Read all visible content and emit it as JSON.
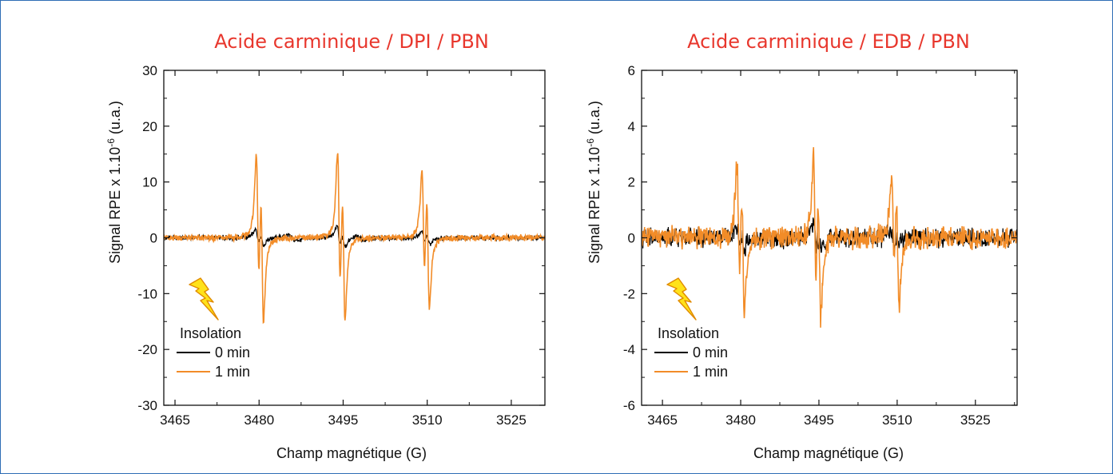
{
  "chart_data": [
    {
      "type": "line",
      "title": "Acide carminique / DPI / PBN",
      "xlabel": "Champ magnétique (G)",
      "ylabel": "Signal RPE x 1.10",
      "ylabel_exponent": "-6",
      "ylabel_unit": " (u.a.)",
      "xlim": [
        3463,
        3531
      ],
      "ylim": [
        -30,
        30
      ],
      "xticks": [
        3465,
        3480,
        3495,
        3510,
        3525
      ],
      "yticks": [
        -30,
        -20,
        -10,
        0,
        10,
        20,
        30
      ],
      "legend": {
        "title": "Insolation",
        "position": "bottom-left"
      },
      "noise": {
        "series0": 0.35,
        "series1": 0.45
      },
      "series": [
        {
          "name": "0 min",
          "color": "#000000",
          "lines": [
            {
              "center": 3479.7,
              "amp": 2.4,
              "width": 0.32
            },
            {
              "center": 3480.6,
              "amp": 2.0,
              "width": 0.32
            },
            {
              "center": 3486.0,
              "amp": 1.0,
              "width": 0.6
            },
            {
              "center": 3494.2,
              "amp": 3.4,
              "width": 0.32
            },
            {
              "center": 3495.1,
              "amp": 2.4,
              "width": 0.32
            },
            {
              "center": 3498.0,
              "amp": 0.8,
              "width": 0.6
            },
            {
              "center": 3509.3,
              "amp": 1.8,
              "width": 0.32
            },
            {
              "center": 3510.2,
              "amp": 1.6,
              "width": 0.32
            }
          ]
        },
        {
          "name": "1 min",
          "color": "#f28c28",
          "lines": [
            {
              "center": 3479.75,
              "amp": 22.5,
              "width": 0.26
            },
            {
              "center": 3480.55,
              "amp": 22.5,
              "width": 0.26
            },
            {
              "center": 3494.25,
              "amp": 24.0,
              "width": 0.26
            },
            {
              "center": 3495.1,
              "amp": 22.5,
              "width": 0.26
            },
            {
              "center": 3509.3,
              "amp": 18.5,
              "width": 0.26
            },
            {
              "center": 3510.15,
              "amp": 19.5,
              "width": 0.26
            }
          ]
        }
      ]
    },
    {
      "type": "line",
      "title": "Acide carminique / EDB / PBN",
      "xlabel": "Champ magnétique (G)",
      "ylabel": "Signal RPE x 1.10",
      "ylabel_exponent": "-6",
      "ylabel_unit": " (u.a.)",
      "xlim": [
        3461,
        3533
      ],
      "ylim": [
        -6,
        6
      ],
      "xticks": [
        3465,
        3480,
        3495,
        3510,
        3525
      ],
      "yticks": [
        -6,
        -4,
        -2,
        0,
        2,
        4,
        6
      ],
      "legend": {
        "title": "Insolation",
        "position": "bottom-left"
      },
      "noise": {
        "series0": 0.28,
        "series1": 0.32
      },
      "series": [
        {
          "name": "0 min",
          "color": "#000000",
          "lines": [
            {
              "center": 3479.5,
              "amp": 0.7,
              "width": 0.35
            },
            {
              "center": 3480.4,
              "amp": 0.5,
              "width": 0.35
            },
            {
              "center": 3494.2,
              "amp": 0.9,
              "width": 0.35
            },
            {
              "center": 3495.1,
              "amp": 0.6,
              "width": 0.35
            },
            {
              "center": 3509.2,
              "amp": 0.4,
              "width": 0.35
            },
            {
              "center": 3510.1,
              "amp": 0.3,
              "width": 0.35
            }
          ]
        },
        {
          "name": "1 min",
          "color": "#f28c28",
          "lines": [
            {
              "center": 3479.55,
              "amp": 4.1,
              "width": 0.28
            },
            {
              "center": 3480.45,
              "amp": 4.2,
              "width": 0.28
            },
            {
              "center": 3494.2,
              "amp": 4.7,
              "width": 0.28
            },
            {
              "center": 3495.1,
              "amp": 4.3,
              "width": 0.28
            },
            {
              "center": 3509.2,
              "amp": 3.6,
              "width": 0.28
            },
            {
              "center": 3510.1,
              "amp": 3.8,
              "width": 0.28
            }
          ]
        }
      ]
    }
  ]
}
